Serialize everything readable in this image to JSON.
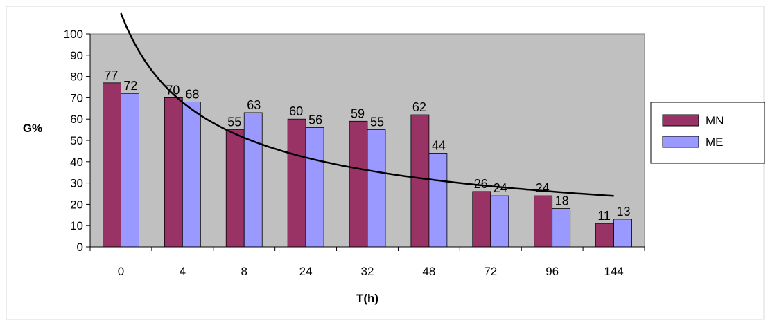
{
  "chart_data": {
    "type": "bar",
    "title": "",
    "xlabel": "T(h)",
    "ylabel": "G%",
    "categories": [
      "0",
      "4",
      "8",
      "24",
      "32",
      "48",
      "72",
      "96",
      "144"
    ],
    "series": [
      {
        "name": "MN",
        "values": [
          77,
          70,
          55,
          60,
          59,
          62,
          26,
          24,
          11
        ],
        "color": "#993366"
      },
      {
        "name": "ME",
        "values": [
          72,
          68,
          63,
          56,
          55,
          44,
          24,
          18,
          13
        ],
        "color": "#9999ff"
      }
    ],
    "trendline": {
      "type": "power",
      "color": "#000000"
    },
    "ylim": [
      0,
      100
    ],
    "yticks": [
      0,
      10,
      20,
      30,
      40,
      50,
      60,
      70,
      80,
      90,
      100
    ],
    "plot_background": "#c0c0c0",
    "grid": false,
    "legend_position": "right"
  }
}
